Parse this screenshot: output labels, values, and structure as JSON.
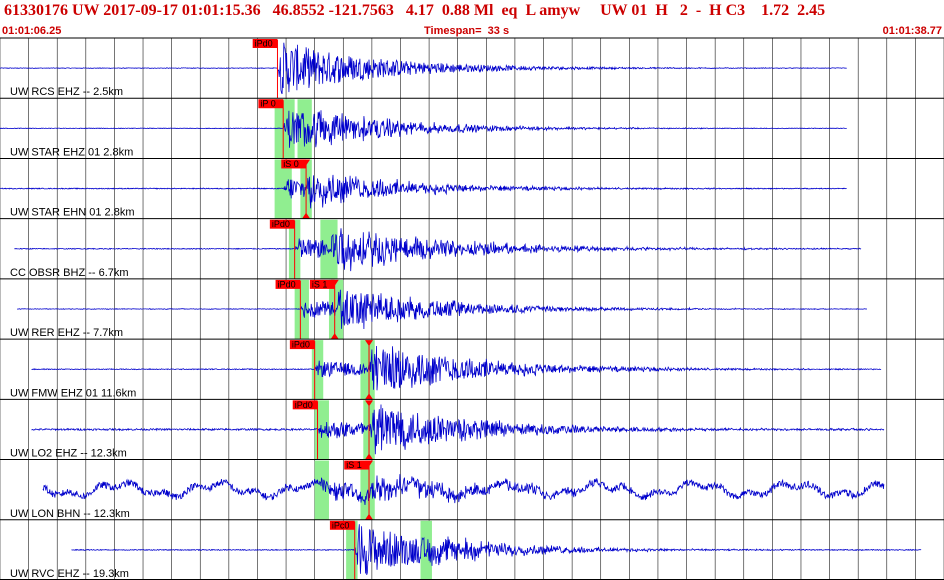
{
  "header": {
    "title": "61330176 UW 2017-09-17 01:01:15.36   46.8552 -121.7563   4.17  0.88 Ml  eq  L amyw     UW 01  H   2  -  H C3    1.72  2.45",
    "start_time": "01:01:06.25",
    "timespan": "Timespan=  33 s",
    "end_time": "01:01:38.77"
  },
  "colors": {
    "header_text": "#cc0000",
    "trace": "#0000cc",
    "pick_marker": "#ff0000",
    "pick_window": "#90ee90",
    "grid": "#000000"
  },
  "chart_data": {
    "type": "line",
    "xlim": [
      0,
      33
    ],
    "grid": true,
    "traces": [
      {
        "label": "UW RCS EHZ -- 2.5km",
        "start": 0.0,
        "end": 29.6,
        "onset": 9.7,
        "amp": 1.0,
        "decay": 0.3,
        "noise": 0.01,
        "late_amp": 0.0,
        "late_time": 0,
        "waves": [],
        "picks": [
          {
            "label": "iPd0",
            "time": 9.7,
            "type": "P"
          }
        ],
        "windows": []
      },
      {
        "label": "UW STAR EHZ 01 2.8km",
        "start": 0.0,
        "end": 29.6,
        "onset": 9.9,
        "amp": 0.75,
        "decay": 0.32,
        "noise": 0.01,
        "late_amp": 0.35,
        "late_time": 10.6,
        "waves": [],
        "picks": [
          {
            "label": "iP 0",
            "time": 9.9,
            "type": "P"
          }
        ],
        "windows": [
          {
            "from": 9.6,
            "to": 10.3
          },
          {
            "from": 10.4,
            "to": 10.9
          }
        ]
      },
      {
        "label": "UW STAR EHN 01 2.8km",
        "start": 0.0,
        "end": 29.6,
        "onset": 9.9,
        "amp": 0.45,
        "decay": 0.35,
        "noise": 0.015,
        "late_amp": 0.55,
        "late_time": 10.7,
        "waves": [],
        "picks": [
          {
            "label": "iS 0",
            "time": 10.7,
            "type": "S"
          }
        ],
        "windows": [
          {
            "from": 9.6,
            "to": 10.2
          },
          {
            "from": 10.5,
            "to": 10.9
          }
        ]
      },
      {
        "label": "CC OBSR BHZ -- 6.7km",
        "start": 0.5,
        "end": 30.1,
        "onset": 10.3,
        "amp": 0.4,
        "decay": 0.2,
        "noise": 0.015,
        "late_amp": 0.75,
        "late_time": 11.5,
        "waves": [],
        "picks": [
          {
            "label": "iPd0",
            "time": 10.3,
            "type": "P"
          }
        ],
        "windows": [
          {
            "from": 10.1,
            "to": 10.5
          },
          {
            "from": 11.2,
            "to": 11.8
          }
        ]
      },
      {
        "label": "UW RER EHZ -- 7.7km",
        "start": 0.6,
        "end": 30.3,
        "onset": 10.5,
        "amp": 0.35,
        "decay": 0.3,
        "noise": 0.01,
        "late_amp": 0.75,
        "late_time": 11.7,
        "waves": [],
        "picks": [
          {
            "label": "iPd0",
            "time": 10.5,
            "type": "P"
          },
          {
            "label": "iS 1",
            "time": 11.7,
            "type": "S"
          }
        ],
        "windows": [
          {
            "from": 10.3,
            "to": 10.8
          },
          {
            "from": 11.5,
            "to": 12.0
          }
        ]
      },
      {
        "label": "UW FMW EHZ 01 11.6km",
        "start": 1.1,
        "end": 30.8,
        "onset": 11.0,
        "amp": 0.3,
        "decay": 0.25,
        "noise": 0.015,
        "late_amp": 0.95,
        "late_time": 12.9,
        "waves": [],
        "picks": [
          {
            "label": "iPd0",
            "time": 11.0,
            "type": "P"
          },
          {
            "label": "",
            "time": 12.9,
            "type": "S"
          }
        ],
        "windows": [
          {
            "from": 10.9,
            "to": 11.3
          },
          {
            "from": 12.6,
            "to": 13.1
          }
        ]
      },
      {
        "label": "UW LO2 EHZ -- 12.3km",
        "start": 1.1,
        "end": 30.9,
        "onset": 11.1,
        "amp": 0.35,
        "decay": 0.25,
        "noise": 0.03,
        "late_amp": 0.9,
        "late_time": 12.9,
        "waves": [],
        "picks": [
          {
            "label": "iPd0",
            "time": 11.1,
            "type": "P"
          },
          {
            "label": "",
            "time": 12.9,
            "type": "S"
          }
        ],
        "windows": [
          {
            "from": 11.0,
            "to": 11.5
          },
          {
            "from": 12.7,
            "to": 13.1
          }
        ]
      },
      {
        "label": "UW LON BHN -- 12.3km",
        "start": 1.5,
        "end": 30.9,
        "onset": 11.1,
        "amp": 0.25,
        "decay": 0.2,
        "noise": 0.12,
        "late_amp": 0.35,
        "late_time": 12.9,
        "waves": [
          {
            "p": 28,
            "a": 0.18
          },
          {
            "p": 9,
            "a": 0.1
          }
        ],
        "picks": [
          {
            "label": "iS 1",
            "time": 12.9,
            "type": "S"
          }
        ],
        "windows": [
          {
            "from": 11.0,
            "to": 11.5
          },
          {
            "from": 12.6,
            "to": 13.1
          }
        ]
      },
      {
        "label": "UW RVC EHZ -- 19.3km",
        "start": 2.5,
        "end": 32.2,
        "onset": 12.4,
        "amp": 1.0,
        "decay": 0.35,
        "noise": 0.015,
        "late_amp": 0.3,
        "late_time": 14.8,
        "waves": [],
        "picks": [
          {
            "label": "iPc0",
            "time": 12.4,
            "type": "P"
          }
        ],
        "windows": [
          {
            "from": 12.1,
            "to": 12.5
          },
          {
            "from": 14.7,
            "to": 15.1
          }
        ]
      }
    ]
  }
}
